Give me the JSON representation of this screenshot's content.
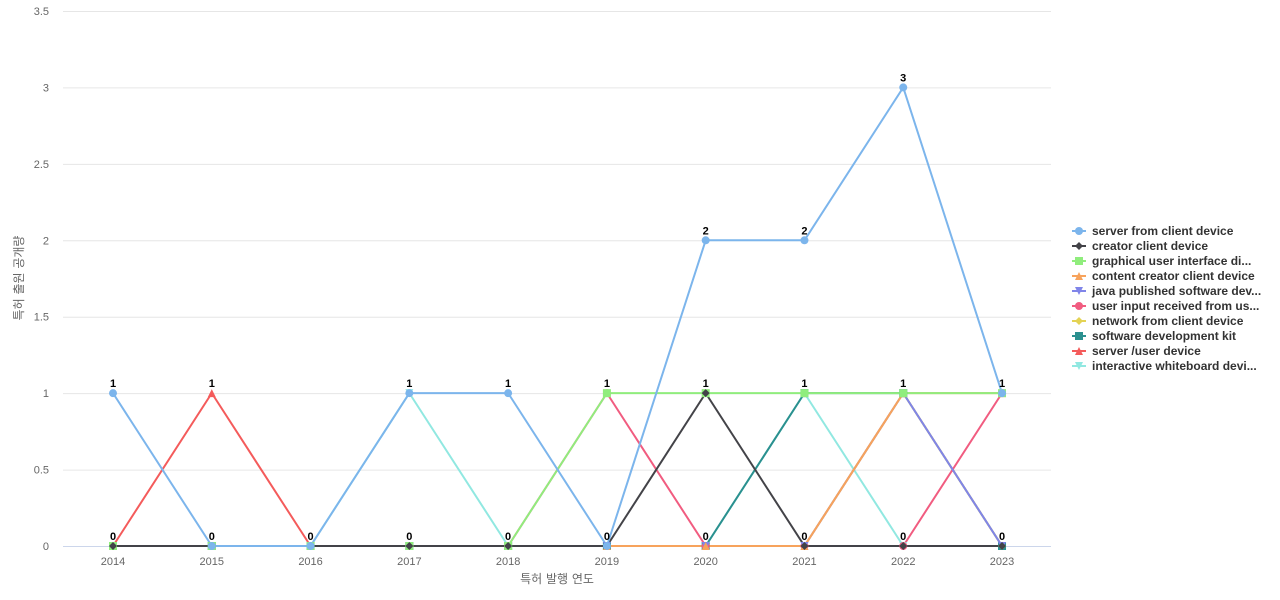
{
  "chart_data": {
    "type": "line",
    "xlabel": "특허 발행 연도",
    "ylabel": "특허 출원 공개량",
    "x": [
      "2014",
      "2015",
      "2016",
      "2017",
      "2018",
      "2019",
      "2020",
      "2021",
      "2022",
      "2023"
    ],
    "yticks": [
      "0",
      "0.5",
      "1",
      "1.5",
      "2",
      "2.5",
      "3",
      "3.5"
    ],
    "ylim": [
      0,
      3.5
    ],
    "grid": "horizontal",
    "legend_position": "right",
    "series": [
      {
        "name": "server from client device",
        "color": "#7cb5ec",
        "marker": "circle",
        "values": [
          1,
          0,
          0,
          1,
          1,
          0,
          2,
          2,
          3,
          1
        ]
      },
      {
        "name": "creator client device",
        "color": "#434348",
        "marker": "diamond",
        "values": [
          0,
          0,
          0,
          0,
          0,
          0,
          1,
          0,
          0,
          0
        ]
      },
      {
        "name": "graphical user interface di...",
        "color": "#90ed7d",
        "marker": "square",
        "values": [
          0,
          0,
          0,
          0,
          0,
          1,
          1,
          1,
          1,
          1
        ]
      },
      {
        "name": "content creator client device",
        "color": "#f7a35c",
        "marker": "triangle",
        "values": [
          0,
          0,
          0,
          0,
          0,
          0,
          0,
          0,
          1,
          1
        ]
      },
      {
        "name": "java published software dev...",
        "color": "#8085e9",
        "marker": "triangle-down",
        "values": [
          0,
          0,
          0,
          0,
          0,
          0,
          0,
          0,
          1,
          0
        ]
      },
      {
        "name": "user input received from us...",
        "color": "#f15c80",
        "marker": "circle",
        "values": [
          0,
          0,
          0,
          0,
          0,
          1,
          0,
          0,
          0,
          1
        ]
      },
      {
        "name": "network from client device",
        "color": "#e4d354",
        "marker": "diamond",
        "values": [
          0,
          0,
          0,
          0,
          0,
          0,
          0,
          0,
          1,
          0
        ]
      },
      {
        "name": "software development kit",
        "color": "#2b908f",
        "marker": "square",
        "values": [
          0,
          0,
          0,
          0,
          0,
          0,
          0,
          1,
          1,
          0
        ]
      },
      {
        "name": "server /user device",
        "color": "#f45b5b",
        "marker": "triangle",
        "values": [
          0,
          1,
          0,
          0,
          0,
          0,
          0,
          0,
          1,
          0
        ]
      },
      {
        "name": "interactive whiteboard devi...",
        "color": "#91e8e1",
        "marker": "triangle-down",
        "values": [
          0,
          0,
          0,
          1,
          0,
          0,
          0,
          1,
          0,
          0
        ]
      }
    ],
    "data_labels": {
      "top": [
        "1",
        "1",
        "",
        "1",
        "1",
        "1",
        "2",
        "2",
        "3",
        "1"
      ],
      "bottom": [
        "0",
        "0",
        "0",
        "0",
        "0",
        "0",
        "0",
        "0",
        "0",
        "0"
      ],
      "middle": [
        "",
        "",
        "",
        "",
        "",
        "",
        "1",
        "1",
        "1",
        ""
      ]
    }
  }
}
